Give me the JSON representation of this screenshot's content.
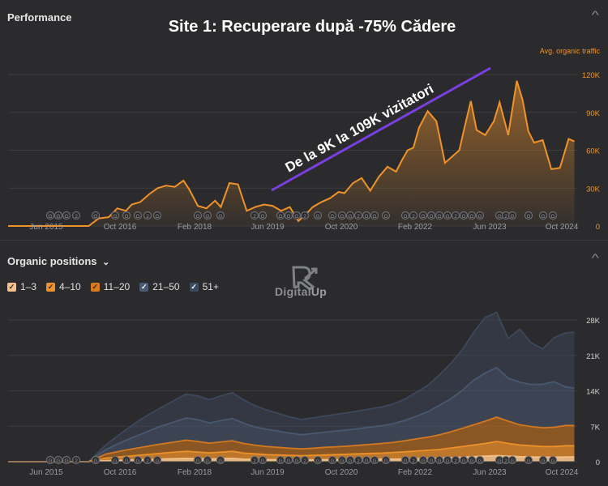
{
  "headline": "Site 1: Recuperare după -75% Cădere",
  "annotation": "De la 9K la 109K vizitatori",
  "colors": {
    "background": "#2b2b2d",
    "traffic": "#f0922a",
    "annotation_line": "#7a3fe0",
    "pos_1_3": "#f6c28a",
    "pos_4_10": "#f0922a",
    "pos_11_20": "#d87a1d",
    "pos_21_50": "#4a5a72",
    "pos_51_plus": "#3d4a5e"
  },
  "performance": {
    "title": "Performance",
    "collapse_icon": "chevron-up-icon",
    "legend_label": "Avg. organic traffic"
  },
  "organic": {
    "title": "Organic positions",
    "title_chevron": "⌄",
    "collapse_icon": "chevron-up-icon",
    "legend": [
      {
        "label": "1–3",
        "color": "#f6c28a"
      },
      {
        "label": "4–10",
        "color": "#f0922a"
      },
      {
        "label": "11–20",
        "color": "#d87a1d"
      },
      {
        "label": "21–50",
        "color": "#4a5a72"
      },
      {
        "label": "51+",
        "color": "#3d4a5e"
      }
    ]
  },
  "logo": {
    "text_main": "Digital",
    "text_accent": "Up"
  },
  "chart_data": [
    {
      "type": "area",
      "title": "Performance",
      "x_ticks": [
        "Jun 2015",
        "Oct 2016",
        "Feb 2018",
        "Jun 2019",
        "Oct 2020",
        "Feb 2022",
        "Jun 2023",
        "Oct 2024"
      ],
      "y_ticks": [
        "0",
        "30K",
        "60K",
        "90K",
        "120K"
      ],
      "ylim": [
        0,
        120000
      ],
      "xlim": [
        2015.0,
        2024.9
      ],
      "grid": true,
      "legend": "top-right",
      "series": [
        {
          "name": "Avg. organic traffic",
          "x": [
            2015.0,
            2015.5,
            2016.0,
            2016.4,
            2016.58,
            2016.75,
            2016.9,
            2017.05,
            2017.15,
            2017.3,
            2017.45,
            2017.6,
            2017.75,
            2017.9,
            2018.05,
            2018.15,
            2018.3,
            2018.45,
            2018.6,
            2018.7,
            2018.85,
            2019.0,
            2019.15,
            2019.3,
            2019.45,
            2019.6,
            2019.75,
            2019.9,
            2020.05,
            2020.15,
            2020.3,
            2020.45,
            2020.6,
            2020.75,
            2020.85,
            2021.0,
            2021.15,
            2021.3,
            2021.45,
            2021.6,
            2021.75,
            2021.85,
            2021.95,
            2022.05,
            2022.15,
            2022.3,
            2022.45,
            2022.6,
            2022.75,
            2022.85,
            2022.95,
            2023.05,
            2023.15,
            2023.3,
            2023.45,
            2023.55,
            2023.7,
            2023.85,
            2023.95,
            2024.05,
            2024.15,
            2024.3,
            2024.45,
            2024.6,
            2024.75,
            2024.85
          ],
          "values": [
            0,
            0,
            0,
            0,
            6000,
            7000,
            14000,
            12000,
            17000,
            19000,
            25000,
            30000,
            32000,
            31000,
            36000,
            29000,
            16000,
            14000,
            20000,
            15000,
            34000,
            33000,
            12000,
            15000,
            17000,
            16000,
            12000,
            15000,
            4000,
            8000,
            15000,
            19000,
            22000,
            27000,
            26000,
            34000,
            38000,
            28000,
            39000,
            47000,
            43000,
            52000,
            60000,
            62000,
            78000,
            91000,
            83000,
            50000,
            56000,
            60000,
            80000,
            99000,
            76000,
            72000,
            83000,
            98000,
            72000,
            115000,
            100000,
            75000,
            66000,
            68000,
            45000,
            46000,
            69000,
            67000
          ]
        }
      ]
    },
    {
      "type": "area",
      "title": "Organic positions",
      "x_ticks": [
        "Jun 2015",
        "Oct 2016",
        "Feb 2018",
        "Jun 2019",
        "Oct 2020",
        "Feb 2022",
        "Jun 2023",
        "Oct 2024"
      ],
      "y_ticks": [
        "0",
        "7K",
        "14K",
        "21K",
        "28K"
      ],
      "ylim": [
        0,
        28000
      ],
      "xlim": [
        2015.0,
        2024.9
      ],
      "grid": true,
      "stacked": true,
      "x": [
        2015.0,
        2016.4,
        2016.7,
        2017.0,
        2017.3,
        2017.6,
        2017.9,
        2018.1,
        2018.3,
        2018.5,
        2018.7,
        2018.9,
        2019.1,
        2019.3,
        2019.5,
        2019.7,
        2019.9,
        2020.1,
        2020.3,
        2020.5,
        2020.7,
        2020.9,
        2021.1,
        2021.3,
        2021.5,
        2021.7,
        2021.9,
        2022.1,
        2022.3,
        2022.5,
        2022.7,
        2022.9,
        2023.1,
        2023.3,
        2023.5,
        2023.7,
        2023.9,
        2024.1,
        2024.3,
        2024.5,
        2024.7,
        2024.85
      ],
      "series": [
        {
          "name": "1–3",
          "values": [
            0,
            0,
            200,
            300,
            400,
            500,
            600,
            650,
            600,
            550,
            600,
            650,
            500,
            450,
            400,
            380,
            350,
            330,
            350,
            380,
            400,
            420,
            450,
            480,
            500,
            520,
            550,
            600,
            650,
            700,
            800,
            900,
            1000,
            1100,
            1200,
            1100,
            1000,
            950,
            900,
            900,
            950,
            950
          ]
        },
        {
          "name": "4–10",
          "values": [
            0,
            0,
            500,
            700,
            900,
            1100,
            1300,
            1400,
            1300,
            1200,
            1300,
            1400,
            1200,
            1100,
            1000,
            950,
            900,
            850,
            900,
            950,
            1000,
            1050,
            1100,
            1150,
            1200,
            1300,
            1400,
            1500,
            1600,
            1700,
            1900,
            2100,
            2300,
            2500,
            2800,
            2500,
            2300,
            2200,
            2100,
            2100,
            2200,
            2200
          ]
        },
        {
          "name": "11–20",
          "values": [
            0,
            0,
            800,
            1200,
            1500,
            1800,
            2000,
            2200,
            2100,
            1900,
            2000,
            2100,
            1900,
            1700,
            1600,
            1500,
            1400,
            1350,
            1400,
            1500,
            1550,
            1600,
            1700,
            1800,
            1900,
            2000,
            2200,
            2400,
            2600,
            2900,
            3200,
            3600,
            4000,
            4400,
            4800,
            4400,
            4000,
            3800,
            3700,
            3800,
            4000,
            4000
          ]
        },
        {
          "name": "21–50",
          "values": [
            0,
            0,
            900,
            1800,
            2600,
            3400,
            4000,
            4400,
            4300,
            4000,
            4200,
            4400,
            4000,
            3600,
            3400,
            3200,
            3000,
            2800,
            2900,
            3000,
            3100,
            3200,
            3300,
            3400,
            3500,
            3700,
            4000,
            4500,
            5000,
            5800,
            6500,
            7500,
            8800,
            9500,
            9800,
            8500,
            8400,
            8300,
            8600,
            9000,
            7600,
            7400
          ]
        },
        {
          "name": "51+",
          "values": [
            0,
            0,
            900,
            1900,
            2900,
            3500,
            4300,
            4700,
            4700,
            4600,
            4900,
            5100,
            4600,
            4200,
            3800,
            3500,
            3200,
            3000,
            3100,
            3200,
            3300,
            3400,
            3500,
            3600,
            3700,
            3900,
            4200,
            4700,
            5200,
            6000,
            7000,
            8000,
            9500,
            11000,
            10900,
            7800,
            10500,
            8200,
            7000,
            8700,
            10700,
            11000
          ]
        }
      ]
    }
  ]
}
